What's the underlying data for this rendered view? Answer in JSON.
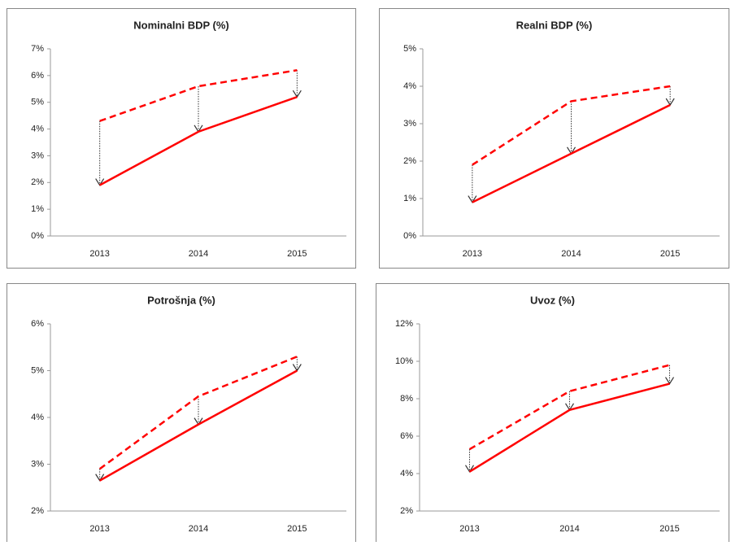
{
  "chart_data": [
    {
      "type": "line",
      "title": "Nominalni BDP (%)",
      "categories": [
        "2013",
        "2014",
        "2015"
      ],
      "series": [
        {
          "color": "#ff0000",
          "style": "dashed",
          "values": [
            4.3,
            5.6,
            6.2
          ]
        },
        {
          "color": "#ff0000",
          "style": "solid",
          "values": [
            1.9,
            3.9,
            5.2
          ]
        }
      ],
      "ylim": [
        0,
        7
      ],
      "yticks": [
        {
          "value": 0,
          "label": "0%"
        },
        {
          "value": 1,
          "label": "1%"
        },
        {
          "value": 2,
          "label": "2%"
        },
        {
          "value": 3,
          "label": "3%"
        },
        {
          "value": 4,
          "label": "4%"
        },
        {
          "value": 5,
          "label": "5%"
        },
        {
          "value": 6,
          "label": "6%"
        },
        {
          "value": 7,
          "label": "7%"
        }
      ],
      "grid": false
    },
    {
      "type": "line",
      "title": "Realni BDP (%)",
      "categories": [
        "2013",
        "2014",
        "2015"
      ],
      "series": [
        {
          "color": "#ff0000",
          "style": "dashed",
          "values": [
            1.9,
            3.6,
            4.0
          ]
        },
        {
          "color": "#ff0000",
          "style": "solid",
          "values": [
            0.9,
            2.2,
            3.5
          ]
        }
      ],
      "ylim": [
        0,
        5
      ],
      "yticks": [
        {
          "value": 0,
          "label": "0%"
        },
        {
          "value": 1,
          "label": "1%"
        },
        {
          "value": 2,
          "label": "2%"
        },
        {
          "value": 3,
          "label": "3%"
        },
        {
          "value": 4,
          "label": "4%"
        },
        {
          "value": 5,
          "label": "5%"
        }
      ],
      "grid": false
    },
    {
      "type": "line",
      "title": "Potrošnja (%)",
      "categories": [
        "2013",
        "2014",
        "2015"
      ],
      "series": [
        {
          "color": "#ff0000",
          "style": "dashed",
          "values": [
            2.9,
            4.45,
            5.3
          ]
        },
        {
          "color": "#ff0000",
          "style": "solid",
          "values": [
            2.65,
            3.85,
            5.0
          ]
        }
      ],
      "ylim": [
        2,
        6
      ],
      "yticks": [
        {
          "value": 2,
          "label": "2%"
        },
        {
          "value": 3,
          "label": "3%"
        },
        {
          "value": 4,
          "label": "4%"
        },
        {
          "value": 5,
          "label": "5%"
        },
        {
          "value": 6,
          "label": "6%"
        }
      ],
      "grid": false
    },
    {
      "type": "line",
      "title": "Uvoz (%)",
      "categories": [
        "2013",
        "2014",
        "2015"
      ],
      "series": [
        {
          "color": "#ff0000",
          "style": "dashed",
          "values": [
            5.3,
            8.4,
            9.8
          ]
        },
        {
          "color": "#ff0000",
          "style": "solid",
          "values": [
            4.1,
            7.4,
            8.8
          ]
        }
      ],
      "ylim": [
        2,
        12
      ],
      "yticks": [
        {
          "value": 2,
          "label": "2%"
        },
        {
          "value": 4,
          "label": "4%"
        },
        {
          "value": 6,
          "label": "6%"
        },
        {
          "value": 8,
          "label": "8%"
        },
        {
          "value": 10,
          "label": "10%"
        },
        {
          "value": 12,
          "label": "12%"
        }
      ],
      "grid": false
    }
  ]
}
